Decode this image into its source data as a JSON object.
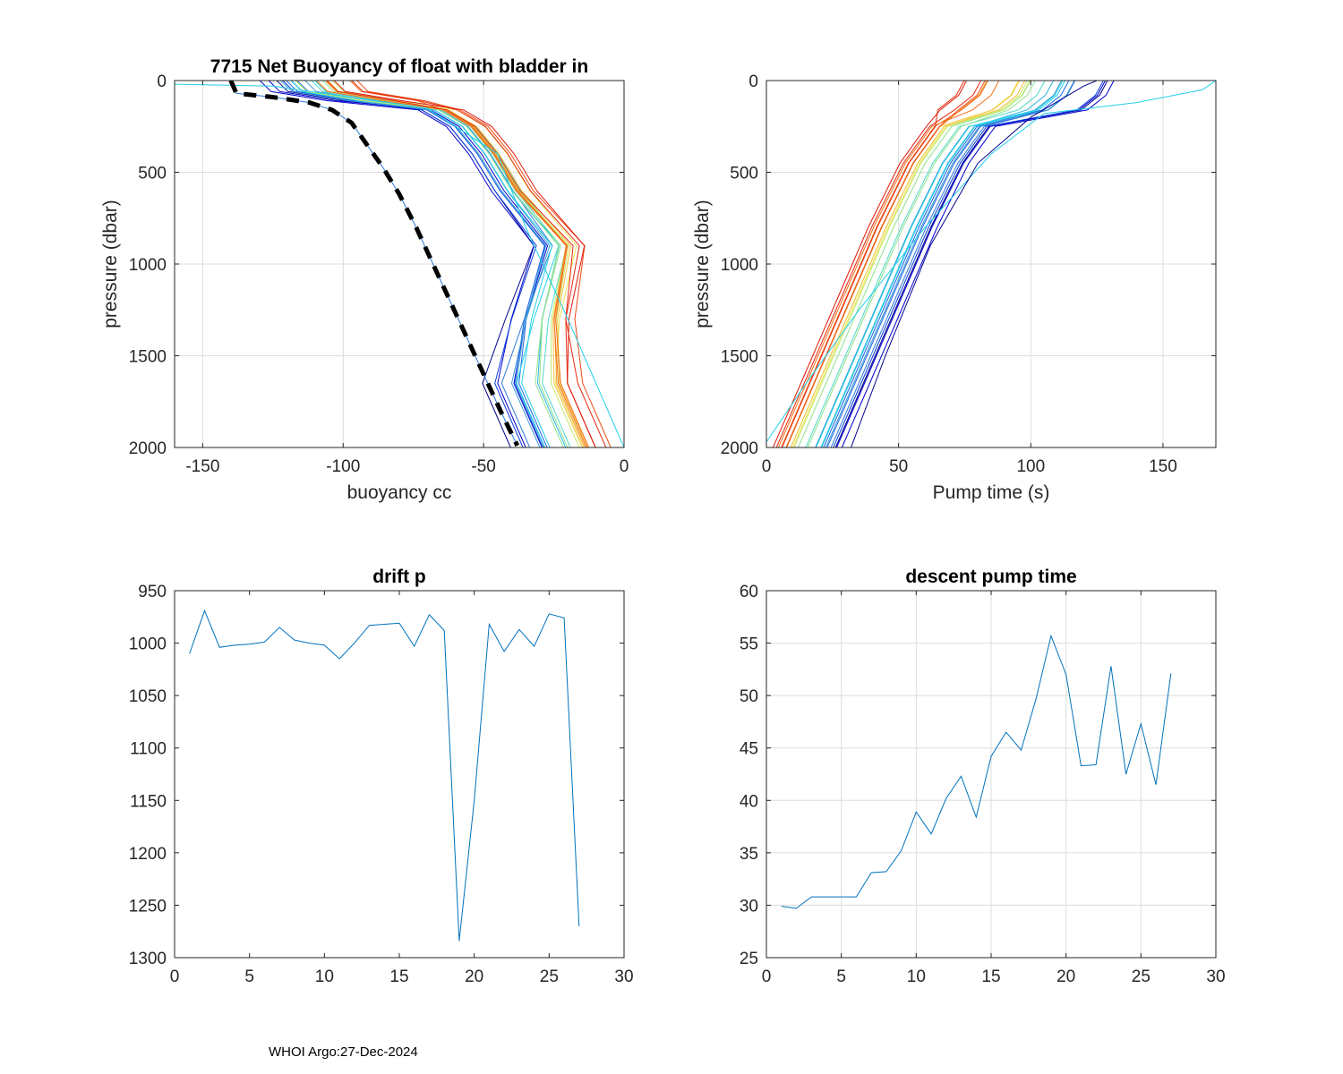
{
  "footer": {
    "text": "WHOI Argo:27-Dec-2024"
  },
  "colors": {
    "profile_palette": [
      "#00008b",
      "#0000cd",
      "#0a3cdc",
      "#1e64e6",
      "#2c7bd8",
      "#3b9bd6",
      "#2fb4e0",
      "#22cfe8",
      "#4fd8c8",
      "#8fe28e",
      "#c4ec6a",
      "#e8e65a",
      "#f5c242",
      "#f79a2e",
      "#f4701e",
      "#ee4a16",
      "#e62a10",
      "#dd1a08"
    ],
    "series_line": "#0072BD",
    "reference_line": "#000000",
    "axis": "#262626",
    "grid": "#dcdcdc"
  },
  "chart_data": [
    {
      "id": "buoyancy",
      "type": "line",
      "title": "7715 Net Buoyancy of float with bladder in",
      "xlabel": "buoyancy cc",
      "ylabel": "pressure (dbar)",
      "xlim": [
        -160,
        0
      ],
      "ylim": [
        0,
        2000
      ],
      "y_reversed": true,
      "xticks": [
        -150,
        -100,
        -50,
        0
      ],
      "yticks": [
        0,
        500,
        1000,
        1500,
        2000
      ],
      "grid": true,
      "reference_profile": {
        "name": "bladder in reference (dashed)",
        "x": [
          -140,
          -138,
          -125,
          -112,
          -104,
          -97,
          -92,
          -86,
          -80,
          -74,
          -68,
          -62,
          -56,
          -50,
          -44,
          -38
        ],
        "y": [
          0,
          70,
          90,
          120,
          160,
          230,
          340,
          470,
          620,
          800,
          1000,
          1200,
          1400,
          1600,
          1800,
          1990
        ]
      },
      "series_summary": {
        "name": "per-cycle profiles (colored by cycle)",
        "count": 27,
        "surface_x_range": [
          -125,
          -90
        ],
        "bottom_x_range": [
          -37,
          -2
        ]
      }
    },
    {
      "id": "pumptime",
      "type": "line",
      "title": "",
      "xlabel": "Pump time (s)",
      "ylabel": "pressure (dbar)",
      "xlim": [
        0,
        170
      ],
      "ylim": [
        0,
        2000
      ],
      "y_reversed": true,
      "xticks": [
        0,
        50,
        100,
        150
      ],
      "yticks": [
        0,
        500,
        1000,
        1500,
        2000
      ],
      "grid": true,
      "series_summary": {
        "name": "per-cycle pump-time profiles (colored by cycle)",
        "count": 27,
        "surface_x_range": [
          75,
          170
        ],
        "bottom_x_range": [
          0,
          32
        ]
      }
    },
    {
      "id": "driftp",
      "type": "line",
      "title": "drift p",
      "xlabel": "",
      "ylabel": "",
      "xlim": [
        0,
        30
      ],
      "ylim": [
        950,
        1300
      ],
      "y_reversed": true,
      "xticks": [
        0,
        5,
        10,
        15,
        20,
        25,
        30
      ],
      "yticks": [
        950,
        1000,
        1050,
        1100,
        1150,
        1200,
        1250,
        1300
      ],
      "grid": false,
      "x": [
        1,
        2,
        3,
        4,
        5,
        6,
        7,
        8,
        9,
        10,
        11,
        12,
        13,
        14,
        15,
        16,
        17,
        18,
        19,
        20,
        21,
        22,
        23,
        24,
        25,
        26,
        27
      ],
      "y": [
        1010,
        969,
        1004,
        1002,
        1001,
        999,
        985,
        997,
        1000,
        1002,
        1015,
        1000,
        983,
        982,
        981,
        1003,
        973,
        988,
        1284,
        1150,
        982,
        1008,
        987,
        1003,
        972,
        976,
        1270
      ]
    },
    {
      "id": "descentpump",
      "type": "line",
      "title": "descent pump time",
      "xlabel": "",
      "ylabel": "",
      "xlim": [
        0,
        30
      ],
      "ylim": [
        25,
        60
      ],
      "y_reversed": false,
      "xticks": [
        0,
        5,
        10,
        15,
        20,
        25,
        30
      ],
      "yticks": [
        25,
        30,
        35,
        40,
        45,
        50,
        55,
        60
      ],
      "grid": true,
      "x": [
        1,
        2,
        3,
        4,
        5,
        6,
        7,
        8,
        9,
        10,
        11,
        12,
        13,
        14,
        15,
        16,
        17,
        18,
        19,
        20,
        21,
        22,
        23,
        24,
        25,
        26,
        27
      ],
      "y": [
        29.9,
        29.7,
        30.8,
        30.8,
        30.8,
        30.8,
        33.1,
        33.2,
        35.2,
        38.9,
        36.8,
        40.2,
        42.3,
        38.4,
        44.2,
        46.5,
        44.8,
        49.7,
        55.7,
        52.0,
        43.3,
        43.4,
        52.8,
        42.5,
        47.3,
        41.5,
        52.1
      ]
    }
  ]
}
